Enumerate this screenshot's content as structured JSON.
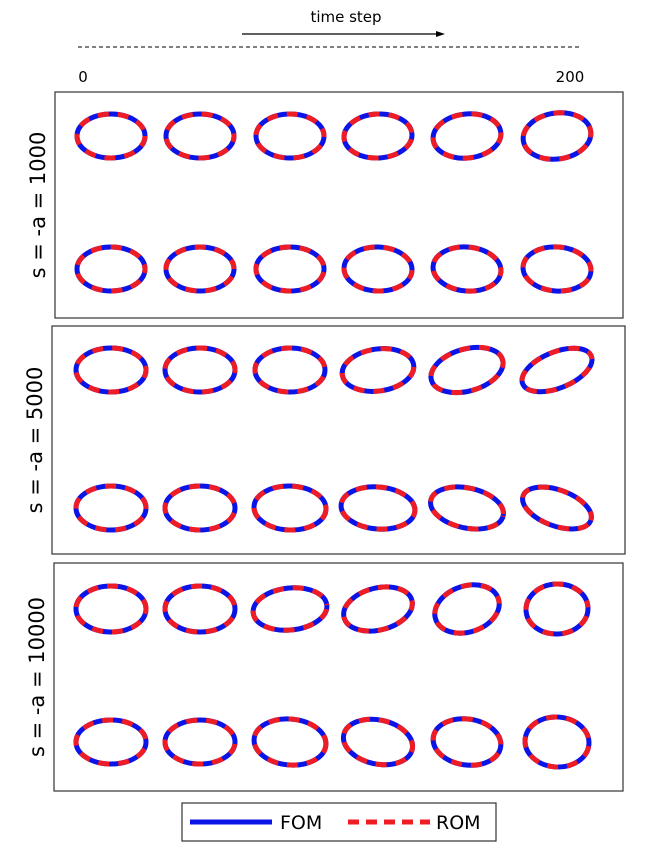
{
  "header": {
    "axis_label": "time step",
    "start_tick": "0",
    "end_tick": "200"
  },
  "panels": [
    {
      "label": "s = -a = 1000"
    },
    {
      "label": "s = -a = 5000"
    },
    {
      "label": "s = -a = 10000"
    }
  ],
  "legend": {
    "fom_label": "FOM",
    "rom_label": "ROM"
  },
  "colors": {
    "fom": "#0a14e6",
    "rom": "#ee1c25",
    "frame": "#333333"
  }
}
